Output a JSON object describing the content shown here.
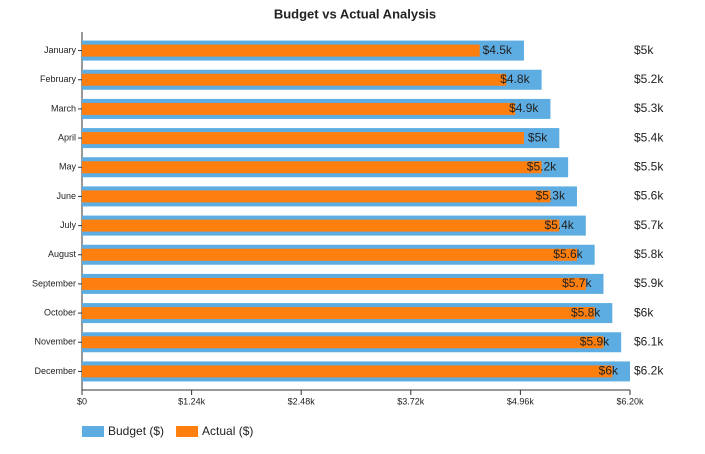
{
  "chart_data": {
    "type": "bar",
    "orientation": "horizontal",
    "title": "Budget vs Actual Analysis",
    "categories": [
      "January",
      "February",
      "March",
      "April",
      "May",
      "June",
      "July",
      "August",
      "September",
      "October",
      "November",
      "December"
    ],
    "series": [
      {
        "name": "Budget ($)",
        "color": "#5dade2",
        "values": [
          5000,
          5200,
          5300,
          5400,
          5500,
          5600,
          5700,
          5800,
          5900,
          6000,
          6100,
          6200
        ],
        "value_labels": [
          "$5k",
          "$5.2k",
          "$5.3k",
          "$5.4k",
          "$5.5k",
          "$5.6k",
          "$5.7k",
          "$5.8k",
          "$5.9k",
          "$6k",
          "$6.1k",
          "$6.2k"
        ]
      },
      {
        "name": "Actual ($)",
        "color": "#ff7f0e",
        "values": [
          4500,
          4800,
          4900,
          5000,
          5200,
          5300,
          5400,
          5600,
          5700,
          5800,
          5900,
          6000
        ],
        "value_labels": [
          "$4.5k",
          "$4.8k",
          "$4.9k",
          "$5k",
          "$5.2k",
          "$5.3k",
          "$5.4k",
          "$5.6k",
          "$5.7k",
          "$5.8k",
          "$5.9k",
          "$6k"
        ]
      }
    ],
    "xlim": [
      0,
      6200
    ],
    "xticks": [
      {
        "value": 0,
        "label": "$0"
      },
      {
        "value": 1240,
        "label": "$1.24k"
      },
      {
        "value": 2480,
        "label": "$2.48k"
      },
      {
        "value": 3720,
        "label": "$3.72k"
      },
      {
        "value": 4960,
        "label": "$4.96k"
      },
      {
        "value": 6200,
        "label": "$6.20k"
      }
    ],
    "grid": false,
    "legend": "bottom-left"
  }
}
